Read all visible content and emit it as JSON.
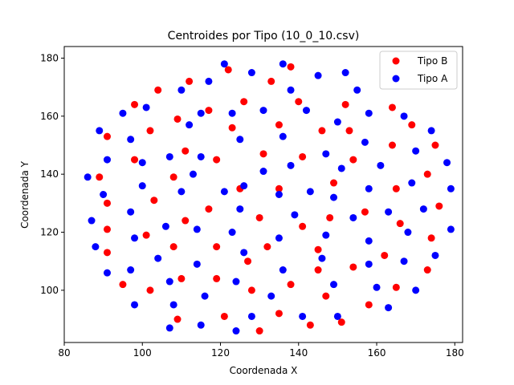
{
  "chart_data": {
    "type": "scatter",
    "title": "Centroides por Tipo (10_0_10.csv)",
    "xlabel": "Coordenada X",
    "ylabel": "Coordenada Y",
    "xlim": [
      80,
      182
    ],
    "ylim": [
      82,
      184
    ],
    "xticks": [
      80,
      100,
      120,
      140,
      160,
      180
    ],
    "yticks": [
      100,
      120,
      140,
      160,
      180
    ],
    "grid": false,
    "legend_position": "top-right",
    "series": [
      {
        "name": "Tipo B",
        "color": "#ff0000",
        "points": [
          [
            122,
            176
          ],
          [
            138,
            177
          ],
          [
            133,
            172
          ],
          [
            112,
            172
          ],
          [
            104,
            169
          ],
          [
            98,
            164
          ],
          [
            126,
            165
          ],
          [
            140,
            165
          ],
          [
            152,
            164
          ],
          [
            164,
            163
          ],
          [
            117,
            162
          ],
          [
            109,
            159
          ],
          [
            135,
            157
          ],
          [
            169,
            157
          ],
          [
            91,
            153
          ],
          [
            102,
            155
          ],
          [
            123,
            156
          ],
          [
            146,
            155
          ],
          [
            153,
            155
          ],
          [
            175,
            150
          ],
          [
            164,
            150
          ],
          [
            111,
            148
          ],
          [
            98,
            145
          ],
          [
            119,
            145
          ],
          [
            131,
            147
          ],
          [
            141,
            146
          ],
          [
            154,
            145
          ],
          [
            89,
            139
          ],
          [
            108,
            139
          ],
          [
            173,
            140
          ],
          [
            125,
            135
          ],
          [
            135,
            135
          ],
          [
            149,
            137
          ],
          [
            165,
            135
          ],
          [
            91,
            130
          ],
          [
            103,
            131
          ],
          [
            117,
            128
          ],
          [
            148,
            125
          ],
          [
            157,
            127
          ],
          [
            176,
            129
          ],
          [
            130,
            125
          ],
          [
            91,
            121
          ],
          [
            111,
            124
          ],
          [
            141,
            122
          ],
          [
            166,
            123
          ],
          [
            101,
            119
          ],
          [
            132,
            115
          ],
          [
            145,
            114
          ],
          [
            119,
            115
          ],
          [
            108,
            115
          ],
          [
            162,
            112
          ],
          [
            174,
            118
          ],
          [
            91,
            113
          ],
          [
            127,
            110
          ],
          [
            154,
            108
          ],
          [
            173,
            107
          ],
          [
            110,
            104
          ],
          [
            119,
            104
          ],
          [
            145,
            107
          ],
          [
            95,
            102
          ],
          [
            102,
            100
          ],
          [
            128,
            100
          ],
          [
            138,
            102
          ],
          [
            165,
            101
          ],
          [
            147,
            98
          ],
          [
            158,
            95
          ],
          [
            109,
            90
          ],
          [
            121,
            91
          ],
          [
            135,
            92
          ],
          [
            130,
            86
          ],
          [
            143,
            88
          ],
          [
            151,
            89
          ]
        ]
      },
      {
        "name": "Tipo A",
        "color": "#0000ff",
        "points": [
          [
            121,
            178
          ],
          [
            136,
            178
          ],
          [
            128,
            175
          ],
          [
            152,
            175
          ],
          [
            145,
            174
          ],
          [
            117,
            172
          ],
          [
            138,
            169
          ],
          [
            155,
            169
          ],
          [
            110,
            169
          ],
          [
            101,
            163
          ],
          [
            131,
            162
          ],
          [
            142,
            162
          ],
          [
            95,
            161
          ],
          [
            115,
            161
          ],
          [
            123,
            161
          ],
          [
            158,
            161
          ],
          [
            167,
            160
          ],
          [
            89,
            155
          ],
          [
            112,
            157
          ],
          [
            150,
            158
          ],
          [
            174,
            155
          ],
          [
            97,
            152
          ],
          [
            125,
            152
          ],
          [
            136,
            153
          ],
          [
            157,
            151
          ],
          [
            170,
            148
          ],
          [
            107,
            146
          ],
          [
            115,
            146
          ],
          [
            138,
            143
          ],
          [
            147,
            147
          ],
          [
            161,
            143
          ],
          [
            178,
            144
          ],
          [
            91,
            145
          ],
          [
            100,
            144
          ],
          [
            86,
            139
          ],
          [
            131,
            141
          ],
          [
            151,
            142
          ],
          [
            100,
            136
          ],
          [
            113,
            140
          ],
          [
            126,
            136
          ],
          [
            121,
            134
          ],
          [
            110,
            134
          ],
          [
            135,
            133
          ],
          [
            143,
            134
          ],
          [
            158,
            135
          ],
          [
            169,
            137
          ],
          [
            179,
            135
          ],
          [
            90,
            133
          ],
          [
            149,
            132
          ],
          [
            125,
            128
          ],
          [
            97,
            127
          ],
          [
            106,
            122
          ],
          [
            114,
            121
          ],
          [
            139,
            126
          ],
          [
            154,
            125
          ],
          [
            163,
            127
          ],
          [
            172,
            128
          ],
          [
            87,
            124
          ],
          [
            123,
            120
          ],
          [
            147,
            119
          ],
          [
            168,
            120
          ],
          [
            179,
            121
          ],
          [
            98,
            118
          ],
          [
            135,
            118
          ],
          [
            158,
            117
          ],
          [
            88,
            115
          ],
          [
            104,
            111
          ],
          [
            126,
            113
          ],
          [
            146,
            111
          ],
          [
            158,
            109
          ],
          [
            167,
            110
          ],
          [
            175,
            112
          ],
          [
            114,
            109
          ],
          [
            136,
            107
          ],
          [
            97,
            107
          ],
          [
            91,
            106
          ],
          [
            107,
            103
          ],
          [
            124,
            103
          ],
          [
            149,
            102
          ],
          [
            160,
            101
          ],
          [
            170,
            100
          ],
          [
            116,
            98
          ],
          [
            133,
            98
          ],
          [
            98,
            95
          ],
          [
            108,
            95
          ],
          [
            163,
            94
          ],
          [
            128,
            91
          ],
          [
            141,
            91
          ],
          [
            150,
            91
          ],
          [
            107,
            87
          ],
          [
            115,
            88
          ],
          [
            124,
            86
          ]
        ]
      }
    ]
  }
}
